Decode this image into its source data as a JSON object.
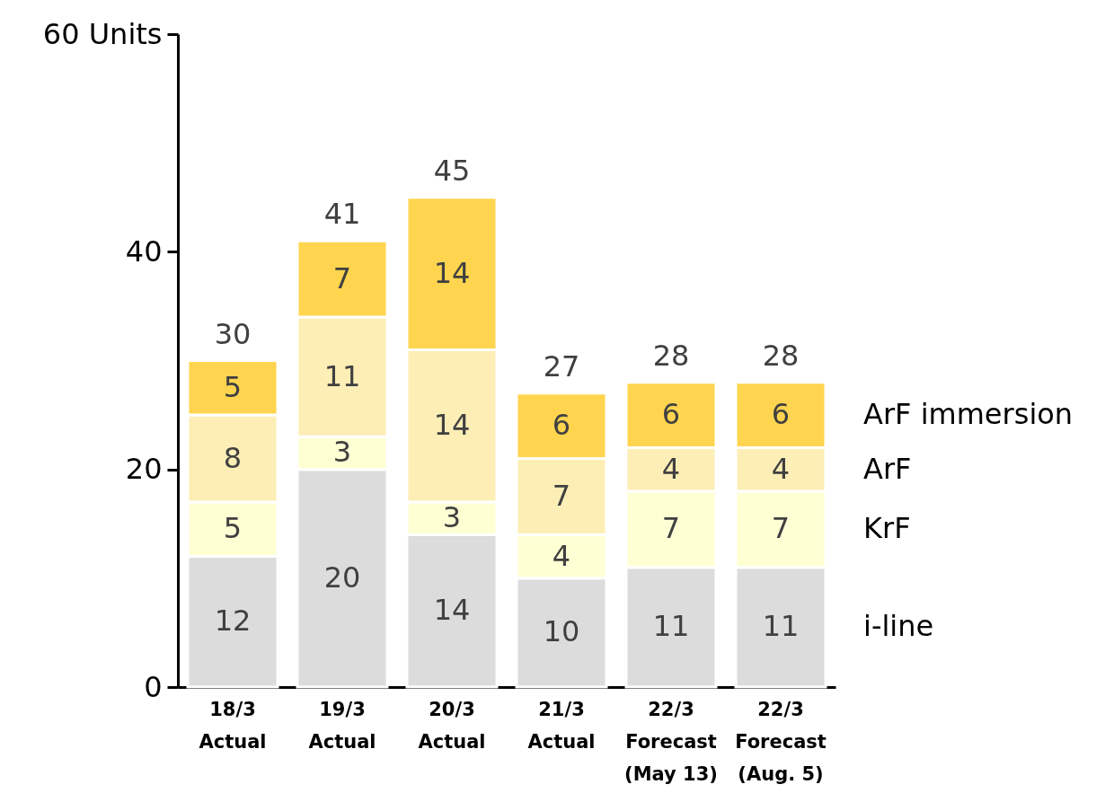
{
  "chart_data": {
    "type": "bar",
    "stacked": true,
    "data_labels": true,
    "legend": "right",
    "categories": [
      "18/3\nActual",
      "19/3\nActual",
      "20/3\nActual",
      "21/3\nActual",
      "22/3\nForecast\n(May 13)",
      "22/3\nForecast\n(Aug. 5)"
    ],
    "series": [
      {
        "name": "i-line",
        "color": "#dcdcdc",
        "values": [
          12,
          20,
          14,
          10,
          11,
          11
        ]
      },
      {
        "name": "KrF",
        "color": "#ffffd4",
        "values": [
          5,
          3,
          3,
          4,
          7,
          7
        ]
      },
      {
        "name": "ArF",
        "color": "#fdeeb6",
        "values": [
          8,
          11,
          14,
          7,
          4,
          4
        ]
      },
      {
        "name": "ArF immersion",
        "color": "#ffd54f",
        "values": [
          5,
          7,
          14,
          6,
          6,
          6
        ]
      }
    ],
    "totals": [
      "30",
      "41",
      "45",
      "27",
      "28",
      "28"
    ],
    "ylim": [
      0,
      60
    ],
    "yticks": [
      0,
      20,
      40,
      {
        "value": 60,
        "label": "60 Units"
      }
    ]
  }
}
